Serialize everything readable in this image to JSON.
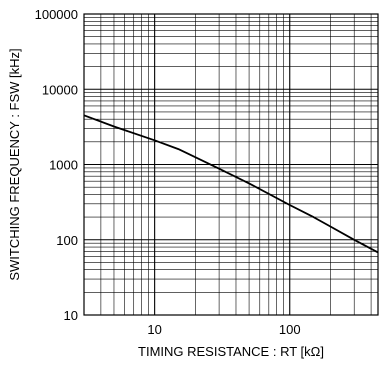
{
  "chart_data": {
    "type": "line",
    "xlabel": "TIMING RESISTANCE : RT [kΩ]",
    "ylabel": "SWITCHING FREQUENCY : FSW [kHz]",
    "xscale": "log",
    "yscale": "log",
    "xlim": [
      3,
      450
    ],
    "ylim": [
      10,
      100000
    ],
    "x_ticks": [
      {
        "value": 10,
        "label": "10"
      },
      {
        "value": 100,
        "label": "100"
      }
    ],
    "y_ticks": [
      {
        "value": 10,
        "label": "10"
      },
      {
        "value": 100,
        "label": "100"
      },
      {
        "value": 1000,
        "label": "1000"
      },
      {
        "value": 10000,
        "label": "10000"
      },
      {
        "value": 100000,
        "label": "100000"
      }
    ],
    "grid": true,
    "series": [
      {
        "x": [
          3,
          5,
          10,
          15,
          20,
          30,
          50,
          100,
          150,
          200,
          300,
          450
        ],
        "y": [
          4500,
          3200,
          2100,
          1600,
          1250,
          880,
          560,
          290,
          200,
          150,
          100,
          68
        ],
        "color": "#000000"
      }
    ]
  }
}
